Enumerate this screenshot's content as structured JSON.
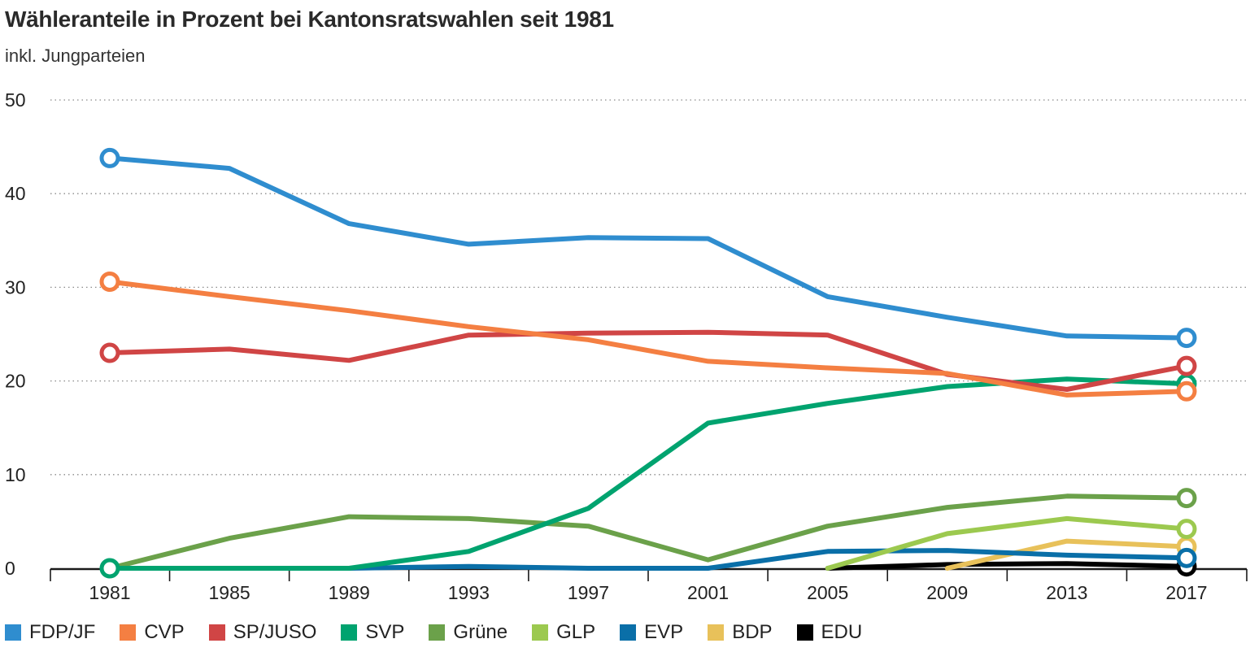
{
  "header": {
    "title": "Wähleranteile in Prozent bei Kantonsratswahlen seit 1981",
    "subtitle": "inkl. Jungparteien"
  },
  "chart_data": {
    "type": "line",
    "title": "Wähleranteile in Prozent bei Kantonsratswahlen seit 1981",
    "subtitle": "inkl. Jungparteien",
    "xlabel": "",
    "ylabel": "",
    "x": [
      1981,
      1985,
      1989,
      1993,
      1997,
      2001,
      2005,
      2009,
      2013,
      2017
    ],
    "ylim": [
      0,
      50
    ],
    "yticks": [
      0,
      10,
      20,
      30,
      40,
      50
    ],
    "grid": "horizontal dotted",
    "legend": "bottom",
    "series": [
      {
        "name": "FDP/JF",
        "color": "#2f8dcf",
        "values": [
          43.8,
          42.7,
          36.8,
          34.6,
          35.3,
          35.2,
          29.0,
          26.8,
          24.8,
          24.6
        ]
      },
      {
        "name": "CVP",
        "color": "#f47f42",
        "values": [
          30.6,
          29.0,
          27.5,
          25.8,
          24.4,
          22.1,
          21.4,
          20.8,
          18.5,
          18.9
        ]
      },
      {
        "name": "SP/JUSO",
        "color": "#d04545",
        "values": [
          23.0,
          23.4,
          22.2,
          24.9,
          25.1,
          25.2,
          24.9,
          20.7,
          19.1,
          21.6
        ]
      },
      {
        "name": "SVP",
        "color": "#00a36f",
        "values": [
          0,
          0,
          0,
          1.8,
          6.4,
          15.5,
          17.6,
          19.4,
          20.2,
          19.7
        ]
      },
      {
        "name": "Grüne",
        "color": "#6ba14a",
        "values": [
          0,
          3.2,
          5.5,
          5.3,
          4.5,
          0.9,
          4.5,
          6.5,
          7.7,
          7.5
        ]
      },
      {
        "name": "GLP",
        "color": "#9cc94f",
        "values": [
          null,
          null,
          null,
          null,
          null,
          null,
          0,
          3.7,
          5.3,
          4.2
        ]
      },
      {
        "name": "EVP",
        "color": "#0a6fa8",
        "values": [
          0,
          0,
          0,
          0.2,
          0,
          0,
          1.8,
          1.9,
          1.4,
          1.1
        ]
      },
      {
        "name": "BDP",
        "color": "#e8c15a",
        "values": [
          null,
          null,
          null,
          null,
          null,
          null,
          null,
          0,
          2.9,
          2.3
        ]
      },
      {
        "name": "EDU",
        "color": "#000000",
        "values": [
          null,
          null,
          null,
          null,
          null,
          null,
          0,
          0.4,
          0.5,
          0.2
        ]
      }
    ]
  }
}
